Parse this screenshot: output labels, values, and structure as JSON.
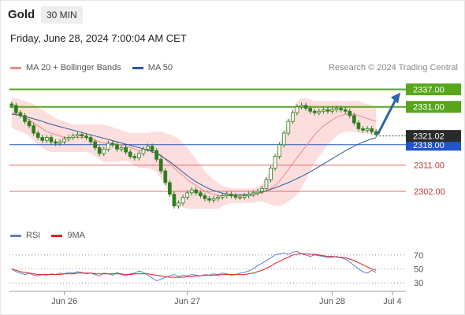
{
  "header": {
    "title": "Gold",
    "timeframe": "30 MIN",
    "datetime": "Friday, June 28, 2024 7:00:04 AM CET"
  },
  "legend_main": [
    {
      "label": "MA 20 + Bollinger Bands",
      "color": "#f08a8a"
    },
    {
      "label": "MA 50",
      "color": "#2a5a9c"
    }
  ],
  "legend_rsi": [
    {
      "label": "RSI",
      "color": "#5b7fd6"
    },
    {
      "label": "9MA",
      "color": "#e02020"
    }
  ],
  "credit": "Research © 2024 Trading Central",
  "colors": {
    "resistance": "#58a61c",
    "support": "#e06a6a",
    "pivot": "#2355c8",
    "arrow": "#2f64a6",
    "candle": "#2f7d1f",
    "band_fill": "#fbd3d3"
  },
  "chart_data": [
    {
      "type": "candlestick",
      "title": "Gold 30 MIN",
      "ylim": [
        2292,
        2342
      ],
      "x_ticks": [
        "Jun 26",
        "Jun 27",
        "Jun 28",
        "Jul 4"
      ],
      "current_price": {
        "label": "2321.02",
        "value": 2321.02
      },
      "levels": [
        {
          "label": "2337.00",
          "value": 2337.0,
          "kind": "resistance"
        },
        {
          "label": "2331.00",
          "value": 2331.0,
          "kind": "resistance"
        },
        {
          "label": "2318.00",
          "value": 2318.0,
          "kind": "pivot"
        },
        {
          "label": "2311.00",
          "value": 2311.0,
          "kind": "support"
        },
        {
          "label": "2302.00",
          "value": 2302.0,
          "kind": "support"
        }
      ],
      "close": [
        2331.5,
        2329,
        2328,
        2326,
        2324.5,
        2322,
        2320.5,
        2319.5,
        2320.5,
        2319,
        2318.5,
        2319,
        2320,
        2320.5,
        2321,
        2321.5,
        2321,
        2320.5,
        2319,
        2317,
        2315,
        2316.5,
        2318.5,
        2318,
        2316.5,
        2317,
        2315.5,
        2314,
        2313.5,
        2315,
        2316.5,
        2317.5,
        2316,
        2313,
        2309,
        2305,
        2301,
        2297,
        2298,
        2300,
        2301.5,
        2302.5,
        2301.5,
        2300.5,
        2299.5,
        2299,
        2299.5,
        2300,
        2300.5,
        2301,
        2300.5,
        2300,
        2300,
        2300.5,
        2301,
        2301.5,
        2302,
        2303,
        2306,
        2310,
        2314,
        2318,
        2322,
        2326,
        2329,
        2331,
        2331.5,
        2330.5,
        2329.5,
        2329,
        2329.5,
        2330,
        2329.5,
        2330,
        2330.5,
        2330,
        2329.5,
        2328,
        2325.5,
        2323.5,
        2323,
        2323.5,
        2322.5,
        2321.5
      ],
      "ma20": [
        2329,
        2328.5,
        2328,
        2327.5,
        2326.5,
        2325.5,
        2324.5,
        2323.5,
        2322.5,
        2322,
        2321.5,
        2321,
        2320.5,
        2320.5,
        2320.5,
        2320.5,
        2320.5,
        2320.5,
        2320,
        2319.5,
        2319,
        2318.5,
        2318.5,
        2318.5,
        2318,
        2318,
        2317.5,
        2317,
        2316.5,
        2316,
        2316,
        2316,
        2316,
        2315.5,
        2314.5,
        2313,
        2311.5,
        2310,
        2308.5,
        2307.5,
        2306,
        2305,
        2304,
        2303,
        2302,
        2301.5,
        2301,
        2300.5,
        2300.5,
        2300.5,
        2300.5,
        2300.5,
        2300.5,
        2300.5,
        2300.5,
        2300.5,
        2301,
        2301.5,
        2302,
        2303,
        2304,
        2305.5,
        2307.5,
        2309.5,
        2311.5,
        2313.5,
        2315.5,
        2317.5,
        2319.5,
        2321.5,
        2323,
        2324.5,
        2325.5,
        2326.5,
        2327.5,
        2328,
        2328.5,
        2328.5,
        2328.5,
        2328,
        2327.5,
        2327,
        2326.5,
        2326
      ],
      "bb_upper": [
        2334,
        2334,
        2333.5,
        2333,
        2332.5,
        2332,
        2331,
        2330,
        2329,
        2328,
        2327,
        2326.5,
        2326,
        2325.5,
        2325,
        2325,
        2325,
        2325,
        2325,
        2325,
        2325,
        2325,
        2324.5,
        2324,
        2323.5,
        2323,
        2322.5,
        2322,
        2322,
        2322,
        2322,
        2322,
        2322.5,
        2322.5,
        2322.5,
        2322,
        2321.5,
        2321,
        2320,
        2318.5,
        2317,
        2315,
        2313,
        2311,
        2309,
        2307.5,
        2306,
        2305,
        2304,
        2303.5,
        2303,
        2303,
        2303,
        2303,
        2303,
        2303,
        2303.5,
        2304.5,
        2306.5,
        2310,
        2314,
        2318,
        2322,
        2326,
        2330,
        2333,
        2334,
        2334,
        2333.5,
        2333,
        2333,
        2333,
        2333,
        2333,
        2333,
        2333,
        2333,
        2333,
        2333,
        2333,
        2332.5,
        2332,
        2331.5,
        2331
      ],
      "bb_lower": [
        2324,
        2323,
        2322.5,
        2322,
        2321,
        2319.5,
        2318,
        2317,
        2316,
        2315.5,
        2315.5,
        2315.5,
        2315.5,
        2315.5,
        2315.5,
        2315.5,
        2315.5,
        2315.5,
        2315,
        2314,
        2313,
        2312,
        2312,
        2312,
        2312,
        2312.5,
        2312.5,
        2312,
        2311,
        2310,
        2310,
        2310,
        2309.5,
        2308.5,
        2306.5,
        2304,
        2301.5,
        2299,
        2297,
        2296.5,
        2296,
        2296,
        2296,
        2296,
        2296,
        2296,
        2296,
        2296,
        2297,
        2297.5,
        2298,
        2298,
        2298,
        2298,
        2298,
        2298,
        2298.5,
        2298.5,
        2298,
        2297.5,
        2297,
        2297,
        2297.5,
        2298.5,
        2299.5,
        2301,
        2303,
        2306,
        2309,
        2312,
        2314,
        2316,
        2318,
        2319.5,
        2321,
        2322,
        2322.5,
        2322.5,
        2322.5,
        2322,
        2322,
        2322,
        2321.5,
        2321
      ],
      "ma50": [
        2328.5,
        2328.3,
        2328,
        2327.7,
        2327.3,
        2326.9,
        2326.5,
        2326,
        2325.5,
        2325,
        2324.6,
        2324.2,
        2323.8,
        2323.4,
        2323,
        2322.6,
        2322.2,
        2321.8,
        2321.4,
        2321,
        2320.6,
        2320.2,
        2319.8,
        2319.4,
        2319,
        2318.6,
        2318.2,
        2317.8,
        2317.4,
        2317,
        2316.6,
        2316.2,
        2315.6,
        2315,
        2314.2,
        2313.2,
        2312.2,
        2311,
        2309.8,
        2308.6,
        2307.4,
        2306.3,
        2305.3,
        2304.4,
        2303.6,
        2302.9,
        2302.3,
        2301.8,
        2301.4,
        2301.1,
        2300.9,
        2300.8,
        2300.8,
        2300.9,
        2301,
        2301.2,
        2301.5,
        2301.8,
        2302.2,
        2302.7,
        2303.2,
        2303.8,
        2304.4,
        2305,
        2305.7,
        2306.4,
        2307.1,
        2307.9,
        2308.7,
        2309.6,
        2310.5,
        2311.4,
        2312.3,
        2313.2,
        2314.1,
        2315,
        2315.9,
        2316.7,
        2317.5,
        2318.2,
        2318.9,
        2319.5,
        2320,
        2320.4
      ],
      "rsi": {
        "ylim": [
          20,
          80
        ],
        "ticks": [
          "70",
          "50",
          "30"
        ],
        "rsi": [
          50,
          46,
          44,
          42,
          44,
          41,
          40,
          42,
          41,
          43,
          42,
          44,
          43,
          45,
          44,
          46,
          45,
          43,
          44,
          42,
          40,
          44,
          43,
          41,
          45,
          42,
          40,
          43,
          44,
          47,
          45,
          41,
          37,
          33,
          35,
          38,
          40,
          42,
          39,
          41,
          40,
          42,
          41,
          40,
          42,
          41,
          43,
          42,
          44,
          43,
          41,
          42,
          44,
          45,
          47,
          50,
          55,
          58,
          62,
          66,
          70,
          72,
          73,
          71,
          74,
          75,
          72,
          70,
          68,
          70,
          69,
          68,
          66,
          67,
          68,
          66,
          64,
          60,
          55,
          50,
          46,
          44,
          48,
          45
        ],
        "ma9": [
          50,
          48,
          46,
          45,
          44,
          43,
          42,
          42,
          42,
          42,
          42,
          42,
          43,
          43,
          43,
          44,
          44,
          44,
          44,
          43,
          43,
          43,
          43,
          43,
          43,
          43,
          42,
          42,
          43,
          43,
          43,
          43,
          42,
          41,
          40,
          39,
          38,
          38,
          38,
          38,
          39,
          39,
          40,
          40,
          41,
          41,
          41,
          41,
          42,
          42,
          42,
          42,
          42,
          42,
          43,
          44,
          46,
          48,
          51,
          54,
          58,
          61,
          64,
          67,
          70,
          71,
          72,
          72,
          71,
          71,
          70,
          69,
          68,
          68,
          67,
          67,
          66,
          64,
          62,
          59,
          56,
          53,
          50,
          48
        ]
      }
    }
  ]
}
